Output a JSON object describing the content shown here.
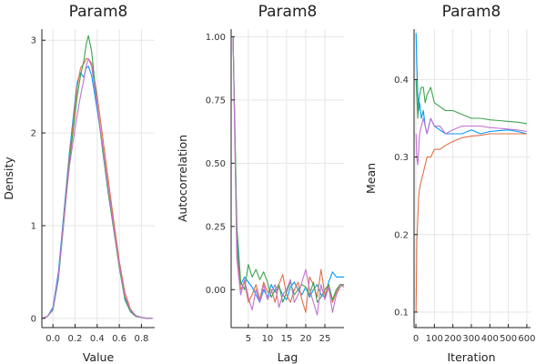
{
  "chart_data": [
    {
      "type": "line",
      "title": "Param8",
      "xlabel": "Value",
      "ylabel": "Density",
      "xlim": [
        -0.1,
        0.92
      ],
      "ylim": [
        -0.1,
        3.12
      ],
      "xticks": [
        0.0,
        0.2,
        0.4,
        0.6,
        0.8
      ],
      "xtick_labels": [
        "0.0",
        "0.2",
        "0.4",
        "0.6",
        "0.8"
      ],
      "yticks": [
        0,
        1,
        2,
        3
      ],
      "ytick_labels": [
        "0",
        "1",
        "2",
        "3"
      ],
      "grid": true,
      "legend": "none",
      "series": [
        {
          "color": "#009af9",
          "x": [
            -0.1,
            -0.05,
            0.0,
            0.05,
            0.1,
            0.15,
            0.2,
            0.22,
            0.25,
            0.28,
            0.3,
            0.32,
            0.35,
            0.4,
            0.45,
            0.5,
            0.55,
            0.6,
            0.65,
            0.7,
            0.75,
            0.8,
            0.85,
            0.9
          ],
          "y": [
            0.0,
            0.02,
            0.12,
            0.5,
            1.15,
            1.8,
            2.35,
            2.55,
            2.65,
            2.6,
            2.7,
            2.72,
            2.62,
            2.25,
            1.85,
            1.4,
            1.0,
            0.55,
            0.22,
            0.08,
            0.03,
            0.01,
            0.0,
            0.0
          ]
        },
        {
          "color": "#e26f46",
          "x": [
            -0.1,
            -0.05,
            0.0,
            0.05,
            0.1,
            0.15,
            0.2,
            0.22,
            0.25,
            0.28,
            0.3,
            0.32,
            0.35,
            0.4,
            0.45,
            0.5,
            0.55,
            0.6,
            0.65,
            0.7,
            0.75,
            0.8,
            0.85,
            0.9
          ],
          "y": [
            0.0,
            0.02,
            0.1,
            0.45,
            1.1,
            1.75,
            2.3,
            2.5,
            2.7,
            2.75,
            2.8,
            2.8,
            2.75,
            2.4,
            1.95,
            1.5,
            1.05,
            0.62,
            0.28,
            0.1,
            0.03,
            0.01,
            0.0,
            0.0
          ]
        },
        {
          "color": "#3da44d",
          "x": [
            -0.1,
            -0.05,
            0.0,
            0.05,
            0.1,
            0.15,
            0.2,
            0.22,
            0.25,
            0.28,
            0.3,
            0.32,
            0.35,
            0.4,
            0.45,
            0.5,
            0.55,
            0.6,
            0.65,
            0.7,
            0.75,
            0.8,
            0.85,
            0.9
          ],
          "y": [
            0.0,
            0.02,
            0.09,
            0.42,
            1.05,
            1.7,
            2.2,
            2.4,
            2.62,
            2.78,
            2.95,
            3.05,
            2.88,
            2.3,
            1.8,
            1.35,
            0.95,
            0.55,
            0.2,
            0.07,
            0.02,
            0.01,
            0.0,
            0.0
          ]
        },
        {
          "color": "#c271d2",
          "x": [
            -0.1,
            -0.05,
            0.0,
            0.05,
            0.1,
            0.15,
            0.2,
            0.22,
            0.25,
            0.28,
            0.3,
            0.32,
            0.35,
            0.4,
            0.45,
            0.5,
            0.55,
            0.6,
            0.65,
            0.7,
            0.75,
            0.8,
            0.85,
            0.9
          ],
          "y": [
            0.0,
            0.02,
            0.1,
            0.45,
            1.08,
            1.65,
            2.05,
            2.2,
            2.4,
            2.58,
            2.72,
            2.8,
            2.72,
            2.3,
            1.85,
            1.4,
            0.98,
            0.58,
            0.24,
            0.09,
            0.03,
            0.01,
            0.0,
            0.0
          ]
        }
      ]
    },
    {
      "type": "line",
      "title": "Param8",
      "xlabel": "Lag",
      "ylabel": "Autocorrelation",
      "xlim": [
        0.5,
        30
      ],
      "ylim": [
        -0.15,
        1.03
      ],
      "xticks": [
        5,
        10,
        15,
        20,
        25
      ],
      "xtick_labels": [
        "5",
        "10",
        "15",
        "20",
        "25"
      ],
      "yticks": [
        0.0,
        0.25,
        0.5,
        0.75,
        1.0
      ],
      "ytick_labels": [
        "0.00",
        "0.25",
        "0.50",
        "0.75",
        "1.00"
      ],
      "grid": true,
      "legend": "none",
      "series": [
        {
          "color": "#009af9",
          "x": [
            1,
            2,
            3,
            4,
            5,
            6,
            7,
            8,
            9,
            10,
            11,
            12,
            13,
            14,
            15,
            16,
            17,
            18,
            19,
            20,
            21,
            22,
            23,
            24,
            25,
            26,
            27,
            28,
            29,
            30
          ],
          "y": [
            1.0,
            0.2,
            0.02,
            0.05,
            0.03,
            0.01,
            -0.02,
            -0.05,
            0.0,
            -0.03,
            0.02,
            -0.01,
            0.01,
            -0.02,
            -0.04,
            0.01,
            0.03,
            0.0,
            -0.02,
            0.01,
            -0.03,
            0.0,
            0.02,
            -0.02,
            -0.03,
            0.03,
            0.07,
            0.05,
            0.05,
            0.05
          ]
        },
        {
          "color": "#e26f46",
          "x": [
            1,
            2,
            3,
            4,
            5,
            6,
            7,
            8,
            9,
            10,
            11,
            12,
            13,
            14,
            15,
            16,
            17,
            18,
            19,
            20,
            21,
            22,
            23,
            24,
            25,
            26,
            27,
            28,
            29,
            30
          ],
          "y": [
            1.0,
            0.15,
            0.0,
            0.03,
            -0.05,
            -0.02,
            0.02,
            -0.04,
            0.03,
            -0.01,
            0.0,
            -0.05,
            0.02,
            0.06,
            -0.02,
            -0.05,
            0.0,
            0.03,
            -0.04,
            -0.09,
            0.05,
            0.02,
            -0.03,
            0.08,
            -0.02,
            0.02,
            -0.05,
            -0.01,
            0.02,
            0.01
          ]
        },
        {
          "color": "#3da44d",
          "x": [
            1,
            2,
            3,
            4,
            5,
            6,
            7,
            8,
            9,
            10,
            11,
            12,
            13,
            14,
            15,
            16,
            17,
            18,
            19,
            20,
            21,
            22,
            23,
            24,
            25,
            26,
            27,
            28,
            29,
            30
          ],
          "y": [
            1.0,
            0.25,
            0.03,
            0.0,
            0.1,
            0.05,
            0.08,
            0.04,
            0.07,
            0.03,
            -0.03,
            0.0,
            0.02,
            -0.05,
            -0.01,
            0.03,
            -0.02,
            0.0,
            0.02,
            0.01,
            -0.02,
            0.03,
            -0.05,
            -0.03,
            0.0,
            0.02,
            -0.04,
            0.0,
            0.02,
            0.02
          ]
        },
        {
          "color": "#c271d2",
          "x": [
            1,
            2,
            3,
            4,
            5,
            6,
            7,
            8,
            9,
            10,
            11,
            12,
            13,
            14,
            15,
            16,
            17,
            18,
            19,
            20,
            21,
            22,
            23,
            24,
            25,
            26,
            27,
            28,
            29,
            30
          ],
          "y": [
            1.0,
            0.12,
            -0.02,
            0.04,
            -0.03,
            -0.08,
            0.0,
            -0.05,
            0.02,
            -0.04,
            -0.01,
            0.02,
            -0.07,
            -0.02,
            0.0,
            0.04,
            -0.05,
            -0.02,
            0.03,
            0.08,
            0.0,
            -0.05,
            -0.1,
            0.02,
            -0.04,
            0.01,
            -0.09,
            -0.02,
            0.01,
            0.02
          ]
        }
      ]
    },
    {
      "type": "line",
      "title": "Param8",
      "xlabel": "Iteration",
      "ylabel": "Mean",
      "xlim": [
        -10,
        620
      ],
      "ylim": [
        0.08,
        0.465
      ],
      "xticks": [
        0,
        100,
        200,
        300,
        400,
        500,
        600
      ],
      "xtick_labels": [
        "0",
        "100",
        "200",
        "300",
        "400",
        "500",
        "600"
      ],
      "yticks": [
        0.1,
        0.2,
        0.3,
        0.4
      ],
      "ytick_labels": [
        "0.1",
        "0.2",
        "0.3",
        "0.4"
      ],
      "grid": true,
      "legend": "none",
      "series": [
        {
          "color": "#009af9",
          "x": [
            1,
            5,
            10,
            15,
            20,
            30,
            40,
            50,
            60,
            80,
            100,
            130,
            160,
            200,
            250,
            300,
            350,
            400,
            450,
            500,
            550,
            600
          ],
          "y": [
            0.46,
            0.42,
            0.38,
            0.36,
            0.37,
            0.35,
            0.36,
            0.34,
            0.33,
            0.35,
            0.34,
            0.335,
            0.33,
            0.33,
            0.33,
            0.335,
            0.33,
            0.333,
            0.334,
            0.335,
            0.333,
            0.33
          ]
        },
        {
          "color": "#e26f46",
          "x": [
            1,
            5,
            10,
            15,
            20,
            30,
            40,
            50,
            60,
            80,
            100,
            130,
            160,
            200,
            250,
            300,
            350,
            400,
            450,
            500,
            550,
            600
          ],
          "y": [
            0.1,
            0.19,
            0.22,
            0.25,
            0.26,
            0.27,
            0.28,
            0.29,
            0.3,
            0.3,
            0.31,
            0.31,
            0.315,
            0.32,
            0.325,
            0.327,
            0.328,
            0.33,
            0.33,
            0.33,
            0.33,
            0.33
          ]
        },
        {
          "color": "#3da44d",
          "x": [
            1,
            5,
            10,
            15,
            20,
            30,
            40,
            50,
            60,
            80,
            100,
            130,
            160,
            200,
            250,
            300,
            350,
            400,
            450,
            500,
            550,
            600
          ],
          "y": [
            0.4,
            0.38,
            0.35,
            0.37,
            0.38,
            0.39,
            0.39,
            0.37,
            0.38,
            0.39,
            0.37,
            0.365,
            0.36,
            0.36,
            0.355,
            0.35,
            0.35,
            0.348,
            0.347,
            0.346,
            0.345,
            0.343
          ]
        },
        {
          "color": "#c271d2",
          "x": [
            1,
            5,
            10,
            15,
            20,
            30,
            40,
            50,
            60,
            80,
            100,
            130,
            160,
            200,
            250,
            300,
            350,
            400,
            450,
            500,
            550,
            600
          ],
          "y": [
            0.33,
            0.3,
            0.29,
            0.31,
            0.33,
            0.34,
            0.35,
            0.34,
            0.33,
            0.35,
            0.34,
            0.34,
            0.33,
            0.335,
            0.34,
            0.34,
            0.34,
            0.338,
            0.337,
            0.336,
            0.335,
            0.333
          ]
        }
      ]
    }
  ]
}
